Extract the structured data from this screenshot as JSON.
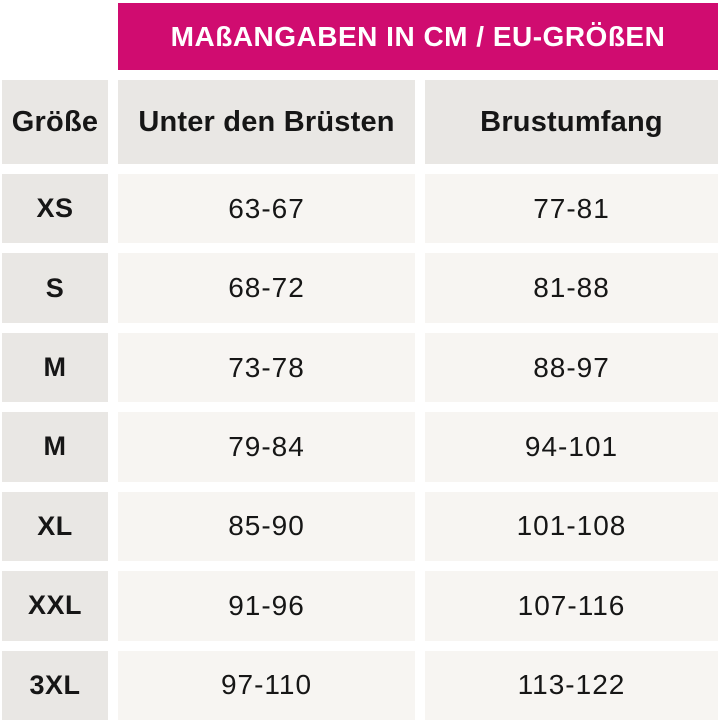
{
  "banner": {
    "title": "MAßANGABEN IN CM / EU-GRÖßEN"
  },
  "table": {
    "columns": [
      "Größe",
      "Unter den Brüsten",
      "Brustumfang"
    ],
    "rows": [
      {
        "size": "XS",
        "underbust": "63-67",
        "bust": "77-81"
      },
      {
        "size": "S",
        "underbust": "68-72",
        "bust": "81-88"
      },
      {
        "size": "M",
        "underbust": "73-78",
        "bust": "88-97"
      },
      {
        "size": "M",
        "underbust": "79-84",
        "bust": "94-101"
      },
      {
        "size": "XL",
        "underbust": "85-90",
        "bust": "101-108"
      },
      {
        "size": "XXL",
        "underbust": "91-96",
        "bust": "107-116"
      },
      {
        "size": "3XL",
        "underbust": "97-110",
        "bust": "113-122"
      }
    ]
  },
  "colors": {
    "banner_background": "#d00c70",
    "banner_text": "#ffffff",
    "header_cell_background": "#e9e7e4",
    "value_cell_background": "#f7f5f2",
    "text": "#161616",
    "page_background": "#ffffff"
  },
  "chart_data": {
    "type": "table",
    "title": "MAßANGABEN IN CM / EU-GRÖßEN",
    "columns": [
      "Größe",
      "Unter den Brüsten",
      "Brustumfang"
    ],
    "rows": [
      [
        "XS",
        "63-67",
        "77-81"
      ],
      [
        "S",
        "68-72",
        "81-88"
      ],
      [
        "M",
        "73-78",
        "88-97"
      ],
      [
        "M",
        "79-84",
        "94-101"
      ],
      [
        "XL",
        "85-90",
        "101-108"
      ],
      [
        "XXL",
        "91-96",
        "107-116"
      ],
      [
        "3XL",
        "97-110",
        "113-122"
      ]
    ],
    "units": "cm",
    "sizing_system": "EU"
  }
}
